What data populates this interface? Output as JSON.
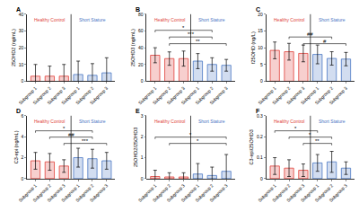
{
  "chart_data": [
    {
      "type": "bar",
      "label": "A",
      "y_label": "25OHD2 (ng/mL)",
      "categories": [
        "Subgroup 1",
        "Subgroup 2",
        "Subgroup 3",
        "Subgroup 1",
        "Subgroup 2",
        "Subgroup 3"
      ],
      "series": [
        {
          "name": "Healthy Control",
          "color": "#e0403a",
          "values": [
            3,
            3,
            3,
            null,
            null,
            null
          ],
          "errors": [
            7,
            6,
            7,
            null,
            null,
            null
          ]
        },
        {
          "name": "Short Stature",
          "color": "#4a77c4",
          "values": [
            null,
            null,
            null,
            4,
            3.5,
            5
          ],
          "errors": [
            null,
            null,
            null,
            8,
            7,
            9
          ]
        }
      ],
      "ylim": [
        0,
        40
      ],
      "yticks": [
        0,
        10,
        20,
        30,
        40
      ],
      "grid": false,
      "significance": []
    },
    {
      "type": "bar",
      "label": "B",
      "y_label": "25OHD3 (ng/mL)",
      "categories": [
        "Subgroup 1",
        "Subgroup 2",
        "Subgroup 3",
        "Subgroup 1",
        "Subgroup 2",
        "Subgroup 3"
      ],
      "series": [
        {
          "name": "Healthy Control",
          "color": "#e0403a",
          "values": [
            31,
            27,
            27,
            null,
            null,
            null
          ],
          "errors": [
            9,
            8,
            9,
            null,
            null,
            null
          ]
        },
        {
          "name": "Short Stature",
          "color": "#4a77c4",
          "values": [
            null,
            null,
            null,
            24,
            20,
            19
          ],
          "errors": [
            null,
            null,
            null,
            9,
            8,
            7
          ]
        }
      ],
      "ylim": [
        0,
        80
      ],
      "yticks": [
        0,
        20,
        40,
        60,
        80
      ],
      "grid": false,
      "significance": [
        {
          "from": 1,
          "to": 5,
          "label": "**"
        },
        {
          "from": 1,
          "to": 4,
          "label": "***"
        },
        {
          "from": 0,
          "to": 4,
          "label": "*"
        }
      ]
    },
    {
      "type": "bar",
      "label": "C",
      "y_label": "f25OHD (ng/L)",
      "categories": [
        "Subgroup 1",
        "Subgroup 2",
        "Subgroup 3",
        "Subgroup 1",
        "Subgroup 2",
        "Subgroup 3"
      ],
      "series": [
        {
          "name": "Healthy Control",
          "color": "#e0403a",
          "values": [
            9.2,
            8.8,
            8.3,
            null,
            null,
            null
          ],
          "errors": [
            2.5,
            2.5,
            2.5,
            null,
            null,
            null
          ]
        },
        {
          "name": "Short Stature",
          "color": "#4a77c4",
          "values": [
            null,
            null,
            null,
            8.0,
            6.8,
            6.6
          ],
          "errors": [
            null,
            null,
            null,
            2.8,
            2,
            2
          ]
        }
      ],
      "ylim": [
        0,
        20
      ],
      "yticks": [
        0,
        5,
        10,
        15,
        20
      ],
      "grid": false,
      "significance": [
        {
          "from": 2,
          "to": 5,
          "label": "#"
        },
        {
          "from": 1,
          "to": 4,
          "label": "##"
        }
      ]
    },
    {
      "type": "bar",
      "label": "D",
      "y_label": "C3-epi (ng/mL)",
      "categories": [
        "Subgroup 1",
        "Subgroup 2",
        "Subgroup 3",
        "Subgroup 1",
        "Subgroup 2",
        "Subgroup 3"
      ],
      "series": [
        {
          "name": "Healthy Control",
          "color": "#e0403a",
          "values": [
            1.7,
            1.6,
            1.2,
            null,
            null,
            null
          ],
          "errors": [
            0.8,
            0.8,
            0.6,
            null,
            null,
            null
          ]
        },
        {
          "name": "Short Stature",
          "color": "#4a77c4",
          "values": [
            null,
            null,
            null,
            2.0,
            1.9,
            1.7
          ],
          "errors": [
            null,
            null,
            null,
            0.9,
            0.9,
            0.8
          ]
        }
      ],
      "ylim": [
        0,
        6
      ],
      "yticks": [
        0,
        2,
        4,
        6
      ],
      "grid": false,
      "significance": [
        {
          "from": 2,
          "to": 5,
          "label": "***"
        },
        {
          "from": 1,
          "to": 4,
          "label": "##"
        },
        {
          "from": 0,
          "to": 4,
          "label": "*"
        }
      ]
    },
    {
      "type": "bar",
      "label": "E",
      "y_label": "25OHD2/25OHD3",
      "categories": [
        "Subgroup 1",
        "Subgroup 2",
        "Subgroup 3",
        "Subgroup 1",
        "Subgroup 2",
        "Subgroup 3"
      ],
      "series": [
        {
          "name": "Healthy Control",
          "color": "#e0403a",
          "values": [
            0.1,
            0.08,
            0.08,
            null,
            null,
            null
          ],
          "errors": [
            0.3,
            0.2,
            0.2,
            null,
            null,
            null
          ]
        },
        {
          "name": "Short Stature",
          "color": "#4a77c4",
          "values": [
            null,
            null,
            null,
            0.22,
            0.15,
            0.35
          ],
          "errors": [
            null,
            null,
            null,
            0.5,
            0.4,
            0.8
          ]
        }
      ],
      "ylim": [
        0,
        3
      ],
      "yticks": [
        0,
        1,
        2,
        3
      ],
      "grid": false,
      "significance": [
        {
          "from": 1,
          "to": 5,
          "label": "*"
        },
        {
          "from": 0,
          "to": 5,
          "label": "*"
        }
      ]
    },
    {
      "type": "bar",
      "label": "F",
      "y_label": "C3-epi/25OHD3",
      "categories": [
        "Subgroup 1",
        "Subgroup 2",
        "Subgroup 3",
        "Subgroup 1",
        "Subgroup 2",
        "Subgroup 3"
      ],
      "series": [
        {
          "name": "Healthy Control",
          "color": "#e0403a",
          "values": [
            0.06,
            0.05,
            0.04,
            null,
            null,
            null
          ],
          "errors": [
            0.04,
            0.04,
            0.03,
            null,
            null,
            null
          ]
        },
        {
          "name": "Short Stature",
          "color": "#4a77c4",
          "values": [
            null,
            null,
            null,
            0.075,
            0.08,
            0.05
          ],
          "errors": [
            null,
            null,
            null,
            0.04,
            0.05,
            0.03
          ]
        }
      ],
      "ylim": [
        0,
        0.3
      ],
      "yticks": [
        0,
        0.1,
        0.2,
        0.3
      ],
      "grid": false,
      "significance": [
        {
          "from": 2,
          "to": 4,
          "label": "**"
        },
        {
          "from": 1,
          "to": 4,
          "label": "*"
        },
        {
          "from": 0,
          "to": 3,
          "label": "*"
        }
      ]
    }
  ]
}
